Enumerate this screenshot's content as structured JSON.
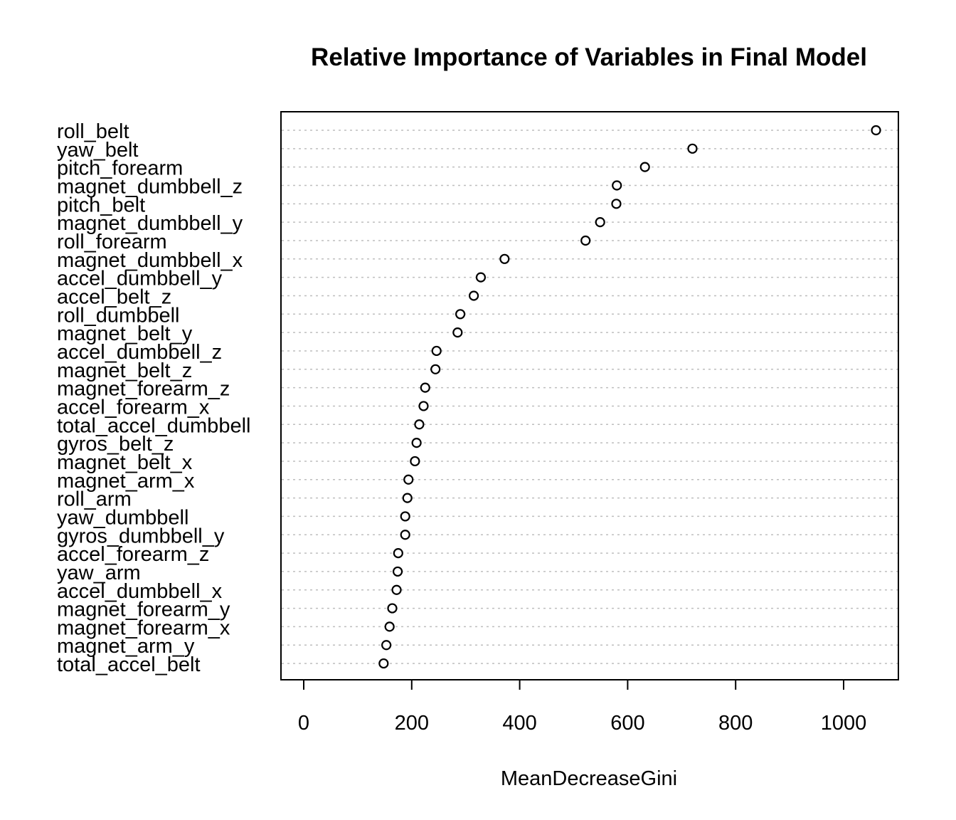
{
  "chart_data": {
    "type": "scatter",
    "subtype": "dotchart",
    "title": "Relative Importance of Variables in Final Model",
    "xlabel": "MeanDecreaseGini",
    "ylabel": "",
    "xlim": [
      -40,
      1100
    ],
    "xticks": [
      0,
      200,
      400,
      600,
      800,
      1000
    ],
    "xtick_labels": [
      "0",
      "200",
      "400",
      "600",
      "800",
      "1000"
    ],
    "grid": "dotted horizontal lines",
    "legend": "none",
    "colors": {
      "points": "#000000",
      "grid": "#bebebe",
      "frame": "#000000"
    },
    "categories": [
      "roll_belt",
      "yaw_belt",
      "pitch_forearm",
      "magnet_dumbbell_z",
      "pitch_belt",
      "magnet_dumbbell_y",
      "roll_forearm",
      "magnet_dumbbell_x",
      "accel_dumbbell_y",
      "accel_belt_z",
      "roll_dumbbell",
      "magnet_belt_y",
      "accel_dumbbell_z",
      "magnet_belt_z",
      "magnet_forearm_z",
      "accel_forearm_x",
      "total_accel_dumbbell",
      "gyros_belt_z",
      "magnet_belt_x",
      "magnet_arm_x",
      "roll_arm",
      "yaw_dumbbell",
      "gyros_dumbbell_y",
      "accel_forearm_z",
      "yaw_arm",
      "accel_dumbbell_x",
      "magnet_forearm_y",
      "magnet_forearm_x",
      "magnet_arm_y",
      "total_accel_belt"
    ],
    "values": [
      1060,
      720,
      632,
      580,
      579,
      549,
      522,
      372,
      328,
      315,
      290,
      285,
      246,
      244,
      225,
      222,
      214,
      209,
      206,
      194,
      192,
      188,
      188,
      175,
      174,
      172,
      164,
      159,
      153,
      148
    ]
  }
}
